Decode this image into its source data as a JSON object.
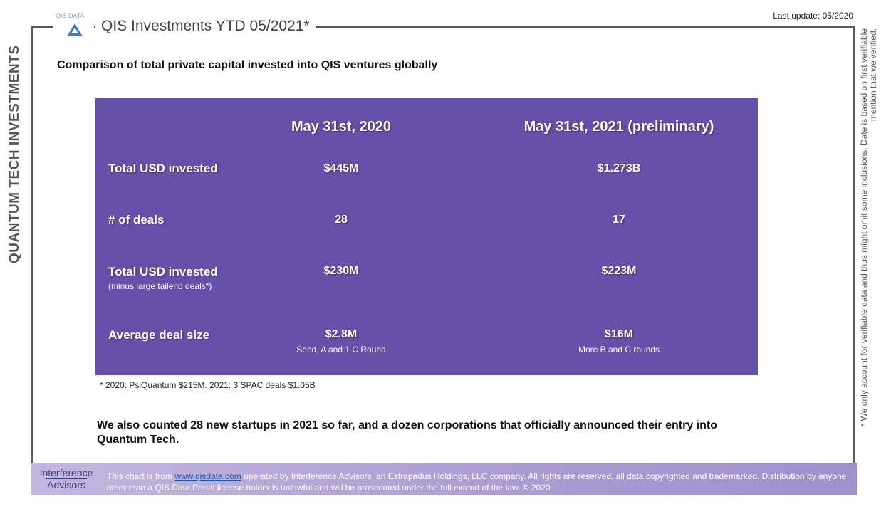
{
  "sidebar": {
    "vertical_title": "QUANTUM TECH INVESTMENTS"
  },
  "logo": {
    "caption": "QIS DATA",
    "icon": "triangle-logo-icon",
    "color": "#4a78c4"
  },
  "header": {
    "title": "QIS Investments YTD 05/2021*",
    "last_update": "Last update: 05/2020"
  },
  "subtitle": "Comparison of total private capital invested into QIS ventures globally",
  "table": {
    "background": "#6750a9",
    "columns": [
      "May 31st, 2020",
      "May 31st, 2021 (preliminary)"
    ],
    "rows": [
      {
        "label": "Total USD invested",
        "sublabel": "",
        "v1": "$445M",
        "v1_sub": "",
        "v2": "$1.273B",
        "v2_sub": ""
      },
      {
        "label": "# of deals",
        "sublabel": "",
        "v1": "28",
        "v1_sub": "",
        "v2": "17",
        "v2_sub": ""
      },
      {
        "label": "Total USD invested",
        "sublabel": "(minus large tailend deals*)",
        "v1": "$230M",
        "v1_sub": "",
        "v2": "$223M",
        "v2_sub": ""
      },
      {
        "label": "Average deal size",
        "sublabel": "",
        "v1": "$2.8M",
        "v1_sub": "Seed, A and 1 C Round",
        "v2": "$16M",
        "v2_sub": "More B and C rounds"
      }
    ]
  },
  "footnote": "* 2020: PsiQuantum $215M. 2021: 3 SPAC deals $1.05B",
  "statement": "We also counted 28 new startups in 2021 so far, and a dozen corporations that officially announced their entry into Quantum Tech.",
  "side_note": "* We only account for verifiable data and thus might omit some inclusions. Date is based on first verifiable mention that we verified.",
  "footer": {
    "logo_line1": "Interference",
    "logo_line2": "Advisors",
    "text_before": "This chart is from ",
    "link": "www.qisdata.com",
    "text_after": " operated by Interference Advisors, an Estrapadus Holdings, LLC company. All rights are reserved, all data copyrighted and trademarked. Distribution by anyone other than a QIS Data Portal license holder is unlawful and will be prosecuted under the full extend of the law. © 2020"
  }
}
